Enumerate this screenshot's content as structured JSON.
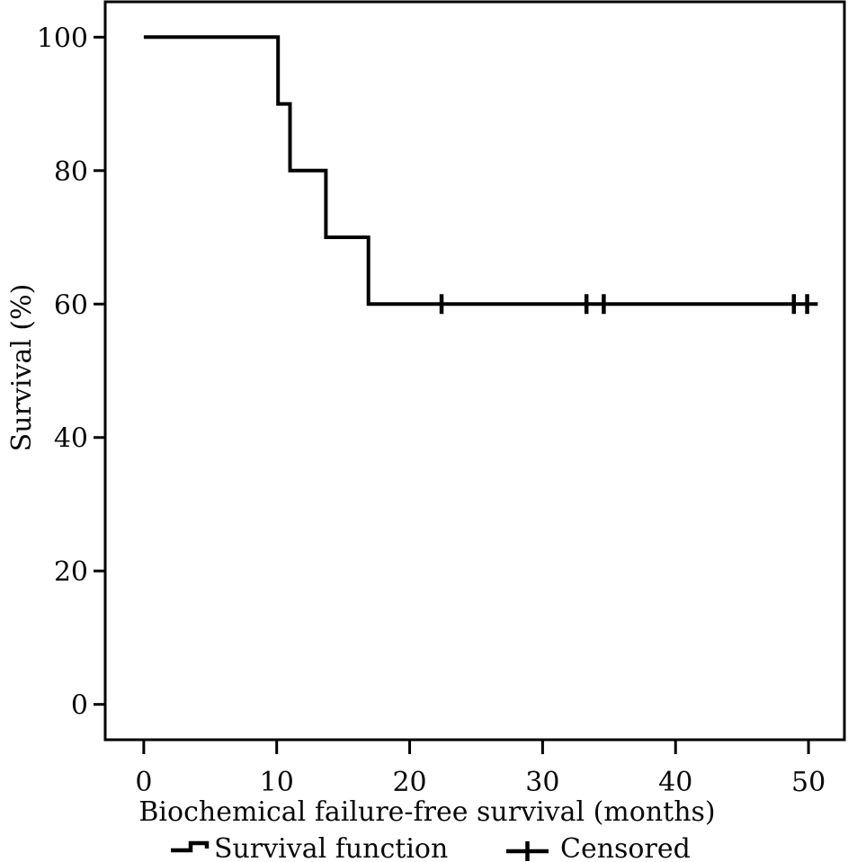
{
  "figure": {
    "background": "#ffffff",
    "foreground": "#000000"
  },
  "chart_data": {
    "type": "line",
    "subtype": "kaplan-meier-step",
    "title": "",
    "xlabel": "Biochemical failure-free survival (months)",
    "ylabel": "Survival (%)",
    "x_ticks": [
      0,
      10,
      20,
      30,
      40,
      50
    ],
    "y_ticks": [
      0,
      20,
      40,
      60,
      80,
      100
    ],
    "xlim": [
      -2.9,
      52.7
    ],
    "ylim": [
      -5.3,
      105.3
    ],
    "grid": "off",
    "line_color": "#000000",
    "series": [
      {
        "name": "Survival function",
        "style": "step",
        "points": [
          {
            "t": 0,
            "s": 100
          },
          {
            "t": 10.1,
            "s": 90
          },
          {
            "t": 11.0,
            "s": 80
          },
          {
            "t": 13.7,
            "s": 70
          },
          {
            "t": 16.9,
            "s": 60
          }
        ],
        "end_t": 50.7
      }
    ],
    "censored": {
      "name": "Censored",
      "marks": [
        {
          "t": 22.4,
          "s": 60
        },
        {
          "t": 33.3,
          "s": 60
        },
        {
          "t": 34.6,
          "s": 60
        },
        {
          "t": 48.9,
          "s": 60
        },
        {
          "t": 49.9,
          "s": 60
        }
      ]
    },
    "legend": {
      "position": "bottom",
      "items": [
        {
          "label": "Survival function",
          "symbol": "step-line"
        },
        {
          "label": "Censored",
          "symbol": "plus"
        }
      ]
    }
  }
}
